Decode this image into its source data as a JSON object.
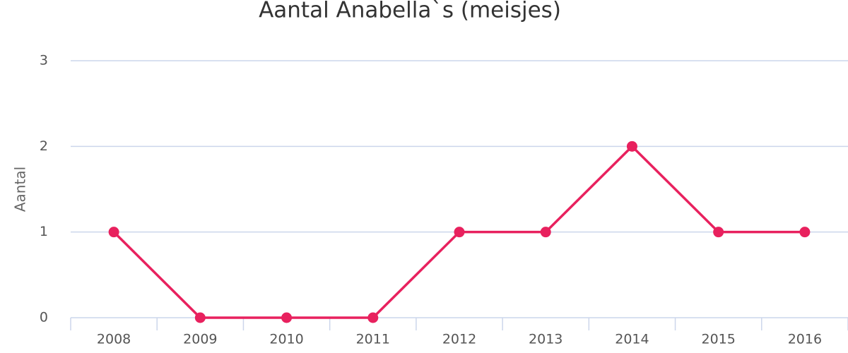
{
  "chart_data": {
    "type": "line",
    "title": "Aantal Anabella`s (meisjes)",
    "y_label": "Aantal",
    "categories": [
      "2008",
      "2009",
      "2010",
      "2011",
      "2012",
      "2013",
      "2014",
      "2015",
      "2016"
    ],
    "values": [
      1,
      0,
      0,
      0,
      1,
      1,
      2,
      1,
      1
    ],
    "color": "#e8215e",
    "ylim": [
      0,
      3
    ],
    "yticks": [
      0,
      1,
      2,
      3
    ],
    "grid": true
  }
}
